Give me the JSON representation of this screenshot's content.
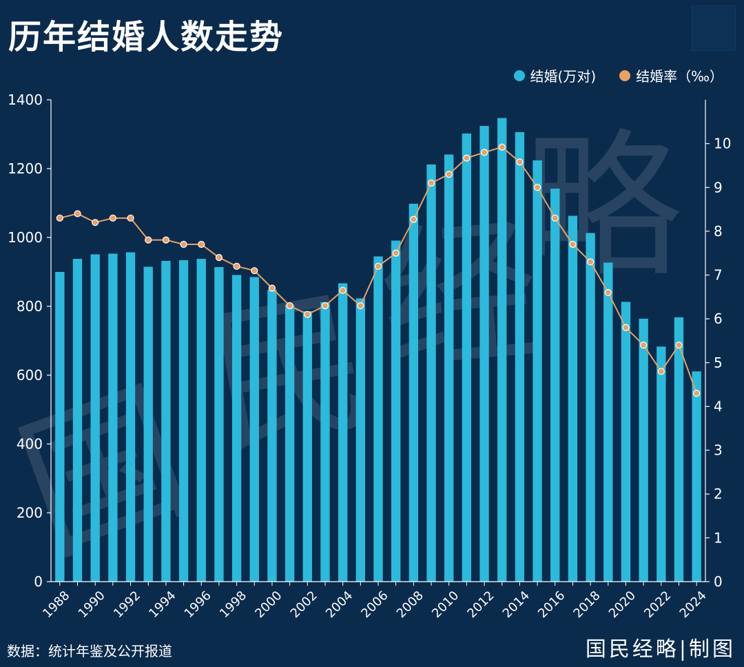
{
  "title": "历年结婚人数走势",
  "source": "数据：统计年鉴及公开报道",
  "brand": "国民经略|制图",
  "watermark_text": "国民经略",
  "colors": {
    "background": "#0b2b4d",
    "bar": "#2bbadb",
    "line": "#e8a065",
    "axis": "#ffffff"
  },
  "chart_data": {
    "type": "bar",
    "categories": [
      "1988",
      "1989",
      "1990",
      "1991",
      "1992",
      "1993",
      "1994",
      "1995",
      "1996",
      "1997",
      "1998",
      "1999",
      "2000",
      "2001",
      "2002",
      "2003",
      "2004",
      "2005",
      "2006",
      "2007",
      "2008",
      "2009",
      "2010",
      "2011",
      "2012",
      "2013",
      "2014",
      "2015",
      "2016",
      "2017",
      "2018",
      "2019",
      "2020",
      "2021",
      "2022",
      "2023",
      "2024"
    ],
    "x_tick_labels": [
      "1988",
      "1990",
      "1992",
      "1994",
      "1996",
      "1998",
      "2000",
      "2002",
      "2004",
      "2006",
      "2008",
      "2010",
      "2012",
      "2014",
      "2016",
      "2018",
      "2020",
      "2022",
      "2024"
    ],
    "series": [
      {
        "name": "结婚(万对)",
        "type": "bar",
        "axis": "left",
        "values": [
          900,
          938,
          951,
          953,
          957,
          915,
          932,
          934,
          938,
          914,
          891,
          885,
          848,
          805,
          786,
          812,
          867,
          823,
          945,
          991,
          1098,
          1212,
          1241,
          1302,
          1324,
          1347,
          1306,
          1224,
          1142,
          1063,
          1013,
          927,
          813,
          764,
          683,
          768,
          611
        ]
      },
      {
        "name": "结婚率（‰）",
        "type": "line",
        "axis": "right",
        "values": [
          8.3,
          8.4,
          8.2,
          8.3,
          8.3,
          7.8,
          7.8,
          7.7,
          7.7,
          7.4,
          7.2,
          7.1,
          6.7,
          6.3,
          6.1,
          6.3,
          6.65,
          6.3,
          7.2,
          7.5,
          8.27,
          9.1,
          9.3,
          9.67,
          9.8,
          9.92,
          9.58,
          9.0,
          8.3,
          7.7,
          7.3,
          6.6,
          5.8,
          5.4,
          4.8,
          5.4,
          4.3
        ]
      }
    ],
    "y_left": {
      "min": 0,
      "max": 1400,
      "ticks": [
        0,
        200,
        400,
        600,
        800,
        1000,
        1200,
        1400
      ]
    },
    "y_right": {
      "min": 0,
      "max": 11,
      "ticks": [
        0,
        1,
        2,
        3,
        4,
        5,
        6,
        7,
        8,
        9,
        10
      ]
    },
    "legend_position": "top-right",
    "grid": false
  }
}
